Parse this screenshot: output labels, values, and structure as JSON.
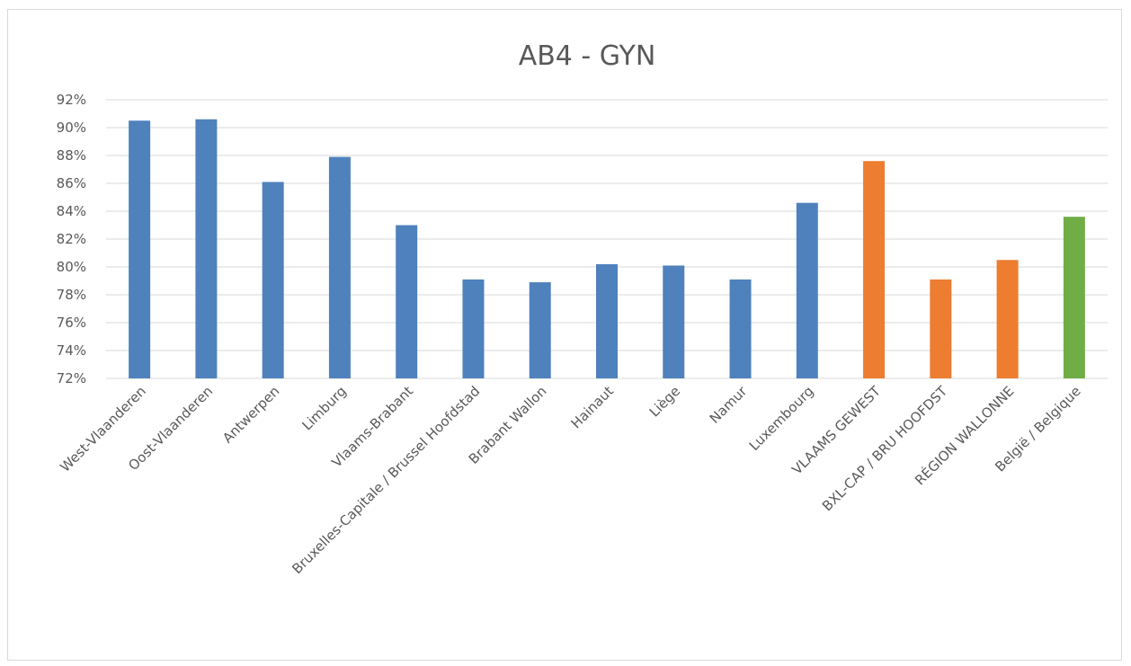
{
  "chart_data": {
    "type": "bar",
    "title": "AB4 - GYN",
    "xlabel": "",
    "ylabel": "",
    "ylim": [
      72,
      92
    ],
    "y_ticks": [
      "72%",
      "74%",
      "76%",
      "78%",
      "80%",
      "82%",
      "84%",
      "86%",
      "88%",
      "90%",
      "92%"
    ],
    "grid": true,
    "legend": "none",
    "categories": [
      "West-Vlaanderen",
      "Oost-Vlaanderen",
      "Antwerpen",
      "Limburg",
      "Vlaams-Brabant",
      "Bruxelles-Capitale / Brussel Hoofdstad",
      "Brabant Wallon",
      "Hainaut",
      "Liège",
      "Namur",
      "Luxembourg",
      "VLAAMS GEWEST",
      "BXL-CAP / BRU HOOFDST",
      "RÉGION WALLONNE",
      "België / Belgique"
    ],
    "values": [
      90.5,
      90.6,
      86.1,
      87.9,
      83.0,
      79.1,
      78.9,
      80.2,
      80.1,
      79.1,
      84.6,
      87.6,
      79.1,
      80.5,
      83.6
    ],
    "colors": [
      "#4f81bd",
      "#4f81bd",
      "#4f81bd",
      "#4f81bd",
      "#4f81bd",
      "#4f81bd",
      "#4f81bd",
      "#4f81bd",
      "#4f81bd",
      "#4f81bd",
      "#4f81bd",
      "#ed7d31",
      "#ed7d31",
      "#ed7d31",
      "#70ad47"
    ]
  }
}
